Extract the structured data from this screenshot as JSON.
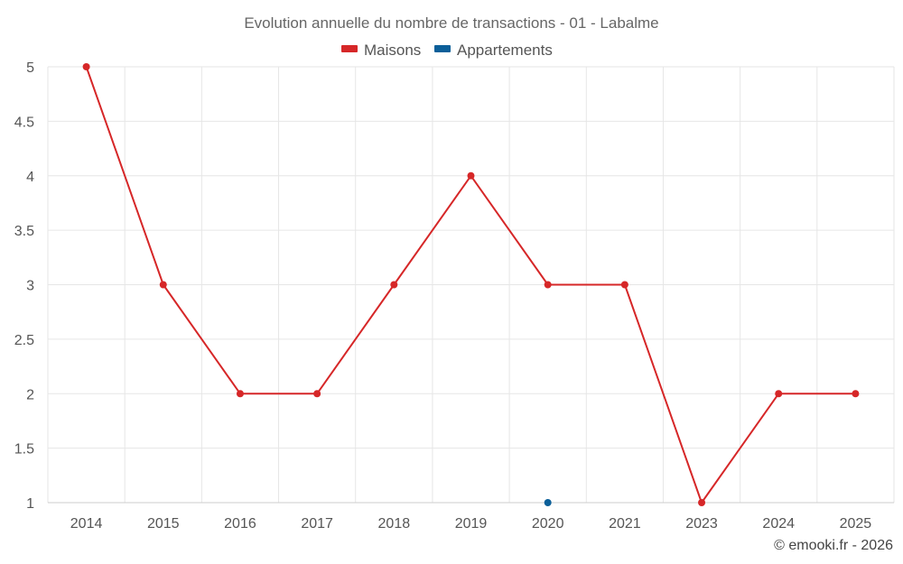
{
  "chart_data": {
    "type": "line",
    "title": "Evolution annuelle du nombre de transactions - 01 - Labalme",
    "categories": [
      "2014",
      "2015",
      "2016",
      "2017",
      "2018",
      "2019",
      "2020",
      "2021",
      "2023",
      "2024",
      "2025"
    ],
    "series": [
      {
        "name": "Maisons",
        "color": "#d62728",
        "values": [
          5,
          3,
          2,
          2,
          3,
          4,
          3,
          3,
          1,
          2,
          2
        ]
      },
      {
        "name": "Appartements",
        "color": "#0b5f99",
        "values": [
          null,
          null,
          null,
          null,
          null,
          null,
          1,
          null,
          null,
          null,
          null
        ]
      }
    ],
    "y_ticks": [
      "5",
      "4.5",
      "4",
      "3.5",
      "3",
      "2.5",
      "2",
      "1.5",
      "1"
    ],
    "ylim": [
      1,
      5
    ],
    "grid": true,
    "legend_position": "top-center",
    "credit": "© emooki.fr - 2026"
  }
}
